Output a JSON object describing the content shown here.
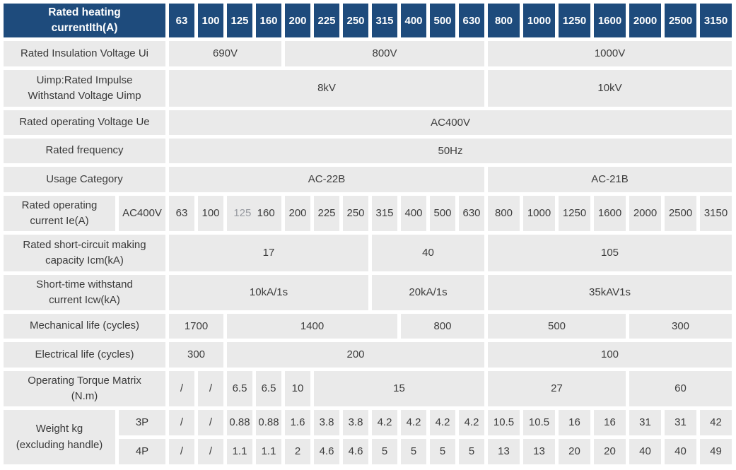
{
  "colors": {
    "header_bg": "#1e4b7c",
    "header_text": "#ffffff",
    "cell_bg": "#eaeaea",
    "text": "#3d3d3d",
    "muted_text": "#979aa0"
  },
  "header": {
    "title": "Rated heating\ncurrentIth(A)",
    "columns": [
      "63",
      "100",
      "125",
      "160",
      "200",
      "225",
      "250",
      "315",
      "400",
      "500",
      "630",
      "800",
      "1000",
      "1250",
      "1600",
      "2000",
      "2500",
      "3150"
    ]
  },
  "rows": [
    {
      "name": "rated-insulation-voltage",
      "label": "Rated Insulation Voltage Ui",
      "cells": [
        {
          "t": "690V",
          "s": 4
        },
        {
          "t": "800V",
          "s": 7
        },
        {
          "t": "1000V",
          "s": 7
        }
      ]
    },
    {
      "name": "rated-impulse-withstand-voltage",
      "label": "Uimp:Rated Impulse\nWithstand Voltage Uimp",
      "cells": [
        {
          "t": "8kV",
          "s": 11
        },
        {
          "t": "10kV",
          "s": 7
        }
      ]
    },
    {
      "name": "rated-operating-voltage",
      "label": "Rated operating Voltage Ue",
      "cells": [
        {
          "t": "AC400V",
          "s": 18
        }
      ]
    },
    {
      "name": "rated-frequency",
      "label": "Rated frequency",
      "cells": [
        {
          "t": "50Hz",
          "s": 18
        }
      ]
    },
    {
      "name": "usage-category",
      "label": "Usage Category",
      "cells": [
        {
          "t": "AC-22B",
          "s": 11
        },
        {
          "t": "AC-21B",
          "s": 7
        }
      ]
    },
    {
      "name": "rated-operating-current",
      "label": "Rated operating\ncurrent Ie(A)",
      "sublabel": "AC400V",
      "cells": [
        {
          "t": "63"
        },
        {
          "t": "100"
        },
        {
          "s": 2,
          "parts": [
            {
              "t": "125",
              "muted": true
            },
            {
              "t": "160"
            }
          ]
        },
        {
          "t": "200"
        },
        {
          "t": "225"
        },
        {
          "t": "250"
        },
        {
          "t": "315"
        },
        {
          "t": "400"
        },
        {
          "t": "500"
        },
        {
          "t": "630"
        },
        {
          "t": "800"
        },
        {
          "t": "1000"
        },
        {
          "t": "1250"
        },
        {
          "t": "1600"
        },
        {
          "t": "2000"
        },
        {
          "t": "2500"
        },
        {
          "t": "3150"
        }
      ]
    },
    {
      "name": "rated-short-circuit-making-capacity",
      "label": "Rated short-circuit making\ncapacity Icm(kA)",
      "cells": [
        {
          "t": "17",
          "s": 7
        },
        {
          "t": "40",
          "s": 4
        },
        {
          "t": "105",
          "s": 7
        }
      ]
    },
    {
      "name": "short-time-withstand-current",
      "label": "Short-time withstand\ncurrent Icw(kA)",
      "cells": [
        {
          "t": "10kA/1s",
          "s": 7
        },
        {
          "t": "20kA/1s",
          "s": 4
        },
        {
          "t": "35kAV1s",
          "s": 7
        }
      ]
    },
    {
      "name": "mechanical-life",
      "label": "Mechanical life (cycles)",
      "cells": [
        {
          "t": "1700",
          "s": 2
        },
        {
          "t": "1400",
          "s": 6
        },
        {
          "t": "800",
          "s": 3
        },
        {
          "t": "500",
          "s": 4
        },
        {
          "t": "300",
          "s": 3
        }
      ]
    },
    {
      "name": "electrical-life",
      "label": "Electrical life (cycles)",
      "cells": [
        {
          "t": "300",
          "s": 2
        },
        {
          "t": "200",
          "s": 9
        },
        {
          "t": "100",
          "s": 7
        }
      ]
    },
    {
      "name": "operating-torque-matrix",
      "label": "Operating Torque Matrix\n(N.m)",
      "cells": [
        {
          "t": "/",
          "muted": true
        },
        {
          "t": "/",
          "muted": true
        },
        {
          "t": "6.5"
        },
        {
          "t": "6.5"
        },
        {
          "t": "10",
          "muted": true
        },
        {
          "t": "15",
          "s": 6
        },
        {
          "t": "27",
          "s": 4
        },
        {
          "t": "60",
          "s": 3
        }
      ]
    },
    {
      "name": "weight-3p",
      "label": "Weight kg\n(excluding handle)",
      "label_rowspan": 2,
      "sublabel": "3P",
      "cells": [
        {
          "t": "/",
          "muted": true
        },
        {
          "t": "/",
          "muted": true
        },
        {
          "t": "0.88"
        },
        {
          "t": "0.88"
        },
        {
          "t": "1.6"
        },
        {
          "t": "3.8"
        },
        {
          "t": "3.8"
        },
        {
          "t": "4.2",
          "muted": true
        },
        {
          "t": "4.2",
          "muted": true
        },
        {
          "t": "4.2",
          "muted": true
        },
        {
          "t": "4.2"
        },
        {
          "t": "10.5"
        },
        {
          "t": "10.5"
        },
        {
          "t": "16"
        },
        {
          "t": "16"
        },
        {
          "t": "31"
        },
        {
          "t": "31"
        },
        {
          "t": "42",
          "muted": true
        }
      ]
    },
    {
      "name": "weight-4p",
      "sublabel": "4P",
      "cells": [
        {
          "t": "/",
          "muted": true
        },
        {
          "t": "/",
          "muted": true
        },
        {
          "t": "1.1",
          "muted": true
        },
        {
          "t": "1.1",
          "muted": true
        },
        {
          "t": "2"
        },
        {
          "t": "4.6"
        },
        {
          "t": "4.6"
        },
        {
          "t": "5"
        },
        {
          "t": "5"
        },
        {
          "t": "5"
        },
        {
          "t": "5"
        },
        {
          "t": "13",
          "muted": true
        },
        {
          "t": "13"
        },
        {
          "t": "20"
        },
        {
          "t": "20"
        },
        {
          "t": "40",
          "muted": true
        },
        {
          "t": "40"
        },
        {
          "t": "49",
          "muted": true
        }
      ]
    }
  ]
}
